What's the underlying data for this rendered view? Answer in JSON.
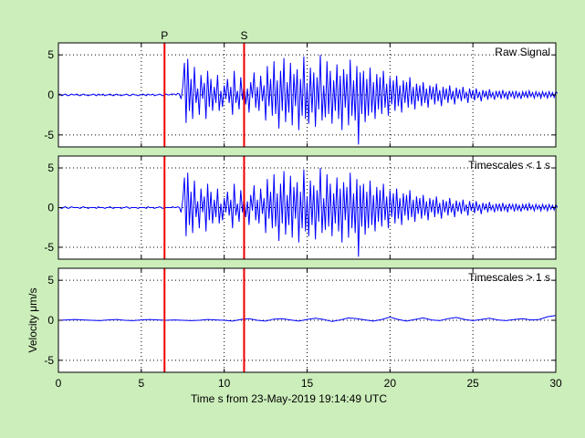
{
  "colors": {
    "figure_bg": "#cceebb",
    "axes_bg": "#ffffff",
    "signal": "#0000ff",
    "phase_marker": "#ee0000",
    "grid": "#000000"
  },
  "chart_data": {
    "type": "line",
    "xlabel": "Time s from 23-May-2019 19:14:49 UTC",
    "ylabel": "Velocity μm/s",
    "xlim": [
      0,
      30
    ],
    "xticks": [
      0,
      5,
      10,
      15,
      20,
      25,
      30
    ],
    "grid": true,
    "phase_markers": [
      {
        "label": "P",
        "x": 6.4
      },
      {
        "label": "S",
        "x": 11.2
      }
    ],
    "panels": [
      {
        "title": "Raw Signal",
        "ylim": [
          -6.5,
          6.5
        ],
        "yticks": [
          -5,
          0,
          5
        ],
        "series": [
          {
            "x_start": 0,
            "x_step": 0.1,
            "values": [
              0.0,
              0.1,
              -0.1,
              0.0,
              0.1,
              0.0,
              -0.1,
              0.0,
              0.1,
              0.0,
              0.0,
              0.1,
              0.0,
              -0.1,
              0.0,
              0.1,
              0.0,
              0.0,
              -0.1,
              0.0,
              0.0,
              0.1,
              0.0,
              -0.1,
              0.1,
              0.0,
              0.0,
              0.1,
              -0.1,
              0.0,
              0.0,
              0.1,
              0.0,
              -0.1,
              0.0,
              0.1,
              0.0,
              0.0,
              -0.1,
              0.0,
              0.0,
              0.1,
              0.0,
              -0.1,
              0.0,
              0.1,
              0.0,
              0.0,
              -0.1,
              0.0,
              0.0,
              0.1,
              0.0,
              -0.1,
              0.1,
              0.0,
              0.0,
              0.1,
              -0.1,
              0.0,
              0.0,
              0.1,
              0.0,
              -0.1,
              0.0,
              0.1,
              0.0,
              0.0,
              0.1,
              0.1,
              0.1,
              0.0,
              0.2,
              0.1,
              -0.5,
              1.0,
              4.0,
              -3.5,
              4.5,
              -2.0,
              2.0,
              -3.0,
              3.5,
              -1.0,
              0.8,
              -2.5,
              2.5,
              -0.5,
              1.5,
              -3.0,
              3.0,
              -1.5,
              2.0,
              -2.0,
              1.0,
              -1.0,
              2.5,
              -2.0,
              0.5,
              -1.5,
              1.2,
              -0.5,
              2.0,
              -1.0,
              1.0,
              -2.5,
              3.0,
              -1.0,
              0.5,
              -1.8,
              2.2,
              -0.6,
              1.5,
              -1.2,
              0.8,
              -2.2,
              1.6,
              -0.4,
              2.8,
              -1.6,
              1.0,
              -2.0,
              2.4,
              -0.8,
              1.2,
              -3.2,
              3.6,
              -1.4,
              2.0,
              -2.6,
              4.2,
              -2.4,
              1.8,
              -4.2,
              3.0,
              -2.0,
              4.6,
              -3.4,
              1.6,
              -2.2,
              4.0,
              -3.8,
              2.6,
              -1.4,
              3.2,
              -4.4,
              2.0,
              -2.6,
              4.8,
              -3.0,
              1.4,
              -3.6,
              3.4,
              -2.2,
              2.8,
              -4.0,
              2.2,
              -1.8,
              5.0,
              -3.2,
              1.2,
              -2.8,
              4.2,
              -2.4,
              3.0,
              -3.6,
              1.8,
              -2.0,
              3.8,
              -3.0,
              2.4,
              -4.4,
              3.2,
              -1.6,
              2.6,
              -3.8,
              4.4,
              -2.6,
              1.8,
              -3.2,
              3.6,
              -6.2,
              2.8,
              -2.4,
              3.0,
              -3.4,
              2.0,
              -2.6,
              3.4,
              -2.2,
              1.6,
              -3.0,
              2.6,
              -1.8,
              2.2,
              -2.4,
              3.0,
              -1.6,
              1.4,
              -2.6,
              2.2,
              -1.2,
              1.8,
              -2.0,
              2.4,
              -1.4,
              1.2,
              -2.2,
              1.8,
              -1.0,
              1.6,
              -1.6,
              2.2,
              -1.2,
              1.0,
              -1.8,
              1.4,
              -0.8,
              1.2,
              -1.4,
              1.6,
              -1.0,
              0.8,
              -1.6,
              1.2,
              -0.6,
              1.0,
              -1.2,
              1.4,
              -0.8,
              0.6,
              -1.4,
              1.0,
              -0.6,
              0.8,
              -1.0,
              1.2,
              -0.6,
              0.5,
              -1.2,
              0.9,
              -0.5,
              0.7,
              -0.8,
              1.0,
              -0.5,
              0.4,
              -1.0,
              0.8,
              -0.4,
              0.6,
              -0.7,
              0.8,
              -0.4,
              0.4,
              -0.8,
              0.6,
              -0.3,
              0.5,
              -0.6,
              0.7,
              -0.3,
              0.3,
              -0.6,
              0.5,
              -0.3,
              0.5,
              -0.5,
              0.6,
              -0.3,
              0.3,
              -0.6,
              0.5,
              -0.2,
              0.4,
              -0.5,
              0.5,
              -0.3,
              0.3,
              -0.5,
              0.4,
              -0.2,
              0.4,
              -0.4,
              0.5,
              -0.2,
              0.3,
              -0.4,
              0.4,
              -0.2,
              0.3,
              -0.4,
              0.4,
              -0.2,
              0.3,
              -0.4,
              0.4,
              -0.2,
              0.3,
              -0.3,
              0.4,
              0.2
            ]
          }
        ]
      },
      {
        "title": "Timescales < 1 s",
        "ylim": [
          -6.5,
          6.5
        ],
        "yticks": [
          -5,
          0,
          5
        ],
        "series": [
          {
            "x_start": 0,
            "x_step": 0.1,
            "values": [
              0.0,
              0.0,
              -0.1,
              0.0,
              0.1,
              0.0,
              -0.1,
              0.0,
              0.1,
              0.0,
              0.0,
              0.0,
              0.0,
              -0.1,
              0.0,
              0.1,
              0.0,
              0.0,
              -0.1,
              0.0,
              0.0,
              0.0,
              0.0,
              -0.1,
              0.1,
              0.0,
              0.0,
              0.0,
              -0.1,
              0.0,
              0.0,
              0.1,
              0.0,
              -0.1,
              0.0,
              0.0,
              0.0,
              0.0,
              -0.1,
              0.0,
              0.0,
              0.1,
              0.0,
              -0.1,
              0.0,
              0.0,
              0.0,
              0.0,
              -0.1,
              0.0,
              0.0,
              0.0,
              0.0,
              -0.1,
              0.1,
              0.0,
              0.0,
              0.0,
              -0.1,
              0.0,
              0.0,
              0.1,
              0.0,
              -0.1,
              0.0,
              0.0,
              0.0,
              0.0,
              0.0,
              0.1,
              0.0,
              0.0,
              0.1,
              0.0,
              -0.6,
              1.0,
              3.8,
              -3.6,
              4.4,
              -2.2,
              2.0,
              -3.2,
              3.4,
              -1.2,
              0.8,
              -2.6,
              2.4,
              -0.6,
              1.4,
              -3.0,
              3.0,
              -1.6,
              2.0,
              -2.0,
              1.0,
              -1.2,
              2.4,
              -2.0,
              0.5,
              -1.6,
              1.2,
              -0.6,
              2.0,
              -1.0,
              1.0,
              -2.6,
              3.0,
              -1.0,
              0.5,
              -1.8,
              2.2,
              -0.6,
              1.4,
              -1.2,
              0.8,
              -2.2,
              1.6,
              -0.4,
              2.8,
              -1.6,
              1.0,
              -2.0,
              2.4,
              -0.8,
              1.2,
              -3.2,
              3.6,
              -1.4,
              2.0,
              -2.6,
              4.2,
              -2.4,
              1.8,
              -4.2,
              3.0,
              -2.0,
              4.6,
              -3.4,
              1.6,
              -2.2,
              4.0,
              -3.8,
              2.6,
              -1.4,
              3.2,
              -4.4,
              2.0,
              -2.6,
              4.8,
              -3.0,
              1.4,
              -3.6,
              3.4,
              -2.2,
              2.8,
              -4.0,
              2.2,
              -1.8,
              5.0,
              -3.2,
              1.2,
              -2.8,
              4.2,
              -2.4,
              3.0,
              -3.6,
              1.8,
              -2.0,
              3.8,
              -3.0,
              2.4,
              -4.4,
              3.2,
              -1.6,
              2.6,
              -3.8,
              4.4,
              -2.6,
              1.8,
              -3.2,
              3.6,
              -6.2,
              2.8,
              -2.4,
              3.0,
              -3.4,
              2.0,
              -2.6,
              3.4,
              -2.2,
              1.6,
              -3.0,
              2.6,
              -1.8,
              2.2,
              -2.4,
              3.0,
              -1.6,
              1.4,
              -2.6,
              2.2,
              -1.2,
              1.8,
              -2.0,
              2.4,
              -1.4,
              1.2,
              -2.2,
              1.8,
              -1.0,
              1.6,
              -1.6,
              2.2,
              -1.2,
              1.0,
              -1.8,
              1.4,
              -0.8,
              1.2,
              -1.4,
              1.6,
              -1.0,
              0.8,
              -1.6,
              1.2,
              -0.6,
              1.0,
              -1.2,
              1.4,
              -0.8,
              0.6,
              -1.4,
              1.0,
              -0.6,
              0.8,
              -1.0,
              1.2,
              -0.6,
              0.5,
              -1.2,
              0.9,
              -0.5,
              0.7,
              -0.8,
              1.0,
              -0.5,
              0.4,
              -1.0,
              0.8,
              -0.4,
              0.6,
              -0.7,
              0.8,
              -0.4,
              0.4,
              -0.8,
              0.6,
              -0.3,
              0.5,
              -0.6,
              0.7,
              -0.3,
              0.3,
              -0.6,
              0.5,
              -0.3,
              0.5,
              -0.5,
              0.6,
              -0.3,
              0.3,
              -0.6,
              0.5,
              -0.2,
              0.4,
              -0.5,
              0.5,
              -0.3,
              0.3,
              -0.5,
              0.4,
              -0.2,
              0.4,
              -0.4,
              0.5,
              -0.2,
              0.3,
              -0.4,
              0.4,
              -0.2,
              0.3,
              -0.4,
              0.4,
              -0.2,
              0.3,
              -0.4,
              0.4,
              -0.2,
              0.3,
              -0.3,
              0.4,
              0.0
            ]
          }
        ]
      },
      {
        "title": "Timescales > 1 s",
        "ylim": [
          -6.5,
          6.5
        ],
        "yticks": [
          -5,
          0,
          5
        ],
        "series": [
          {
            "x_start": 0,
            "x_step": 0.5,
            "values": [
              0.0,
              0.05,
              0.1,
              0.05,
              0.0,
              -0.05,
              0.05,
              0.1,
              0.0,
              -0.05,
              0.05,
              0.1,
              0.05,
              0.0,
              0.05,
              0.0,
              -0.05,
              0.0,
              0.1,
              0.05,
              0.0,
              -0.1,
              0.1,
              0.2,
              0.0,
              -0.1,
              0.15,
              0.2,
              0.05,
              -0.1,
              0.1,
              0.25,
              0.1,
              -0.15,
              0.05,
              0.3,
              0.2,
              0.05,
              -0.1,
              0.1,
              0.4,
              0.1,
              -0.1,
              0.1,
              0.3,
              0.05,
              -0.05,
              0.2,
              0.35,
              0.1,
              -0.05,
              0.1,
              0.25,
              0.05,
              -0.05,
              0.1,
              0.2,
              0.05,
              0.1,
              0.45,
              0.6
            ]
          }
        ]
      }
    ]
  }
}
